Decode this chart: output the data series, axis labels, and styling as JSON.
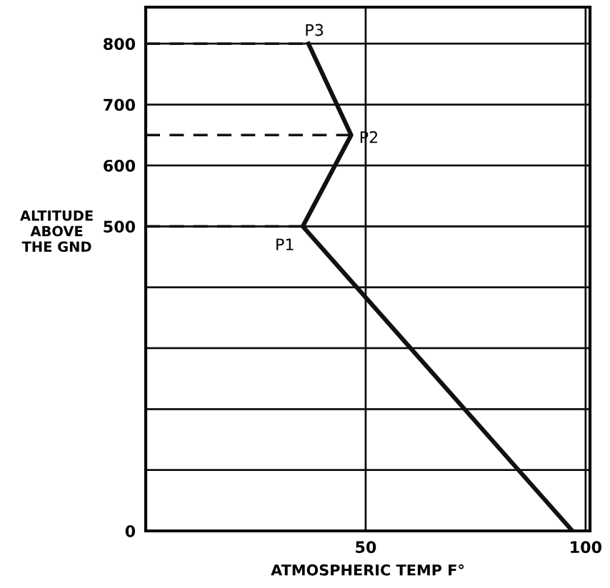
{
  "chart_data": {
    "type": "line",
    "xlabel": "ATMOSPHERIC TEMP F°",
    "ylabel": "ALTITUDE\nABOVE\nTHE GND",
    "series": [
      {
        "color": "#111111",
        "x": [
          97,
          35.7,
          46.7,
          37
        ],
        "values": [
          0,
          500,
          650,
          800
        ],
        "line_style": "solid"
      },
      {
        "color": "#111111",
        "x": [
          0,
          35.7
        ],
        "values": [
          500,
          500
        ],
        "line_style": "dashed"
      },
      {
        "color": "#111111",
        "x": [
          0,
          46.7
        ],
        "values": [
          650,
          650
        ],
        "line_style": "dashed"
      },
      {
        "color": "#111111",
        "x": [
          0,
          37
        ],
        "values": [
          800,
          800
        ],
        "line_style": "dashed"
      }
    ],
    "xlim": [
      0,
      101
    ],
    "ylim": [
      0,
      860
    ],
    "xticks": [
      50,
      100
    ],
    "yticks": [
      0,
      {
        "value": 100,
        "label": null
      },
      {
        "value": 200,
        "label": null
      },
      {
        "value": 300,
        "label": null
      },
      {
        "value": 400,
        "label": null
      },
      500,
      600,
      700,
      800
    ],
    "grid": true,
    "marker": "none",
    "annotations": [
      {
        "text": "P1",
        "x": 35.7,
        "y": 500
      },
      {
        "text": "P2",
        "x": 46.7,
        "y": 650
      },
      {
        "text": "P3",
        "x": 37,
        "y": 800
      }
    ]
  }
}
